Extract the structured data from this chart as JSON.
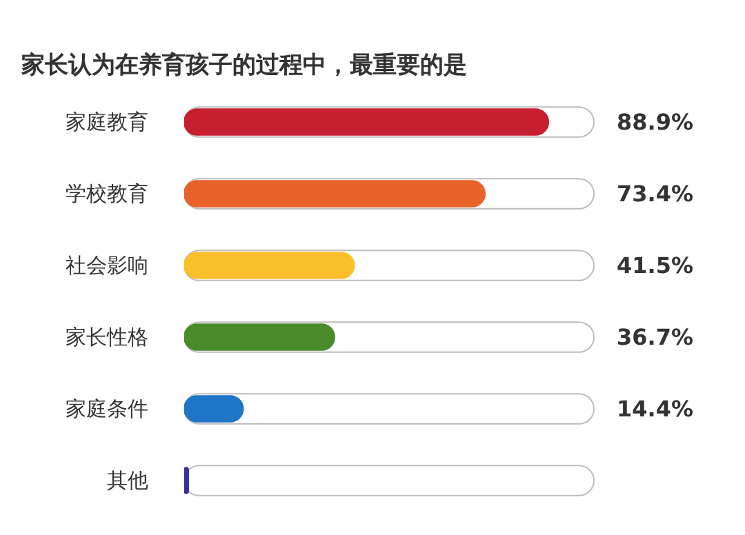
{
  "chart_data": {
    "type": "bar",
    "orientation": "horizontal",
    "title": "家长认为在养育孩子的过程中，最重要的是",
    "categories": [
      "家庭教育",
      "学校教育",
      "社会影响",
      "家长性格",
      "家庭条件",
      "其他"
    ],
    "values": [
      88.9,
      73.4,
      41.5,
      36.7,
      14.4,
      1.0
    ],
    "colors": [
      "#c61f30",
      "#e8622a",
      "#fbbf2c",
      "#4a8a2b",
      "#1f75c8",
      "#36309a"
    ],
    "value_labels": [
      "88.9%",
      "73.4%",
      "41.5%",
      "36.7%",
      "14.4%",
      null
    ],
    "grid": false
  }
}
